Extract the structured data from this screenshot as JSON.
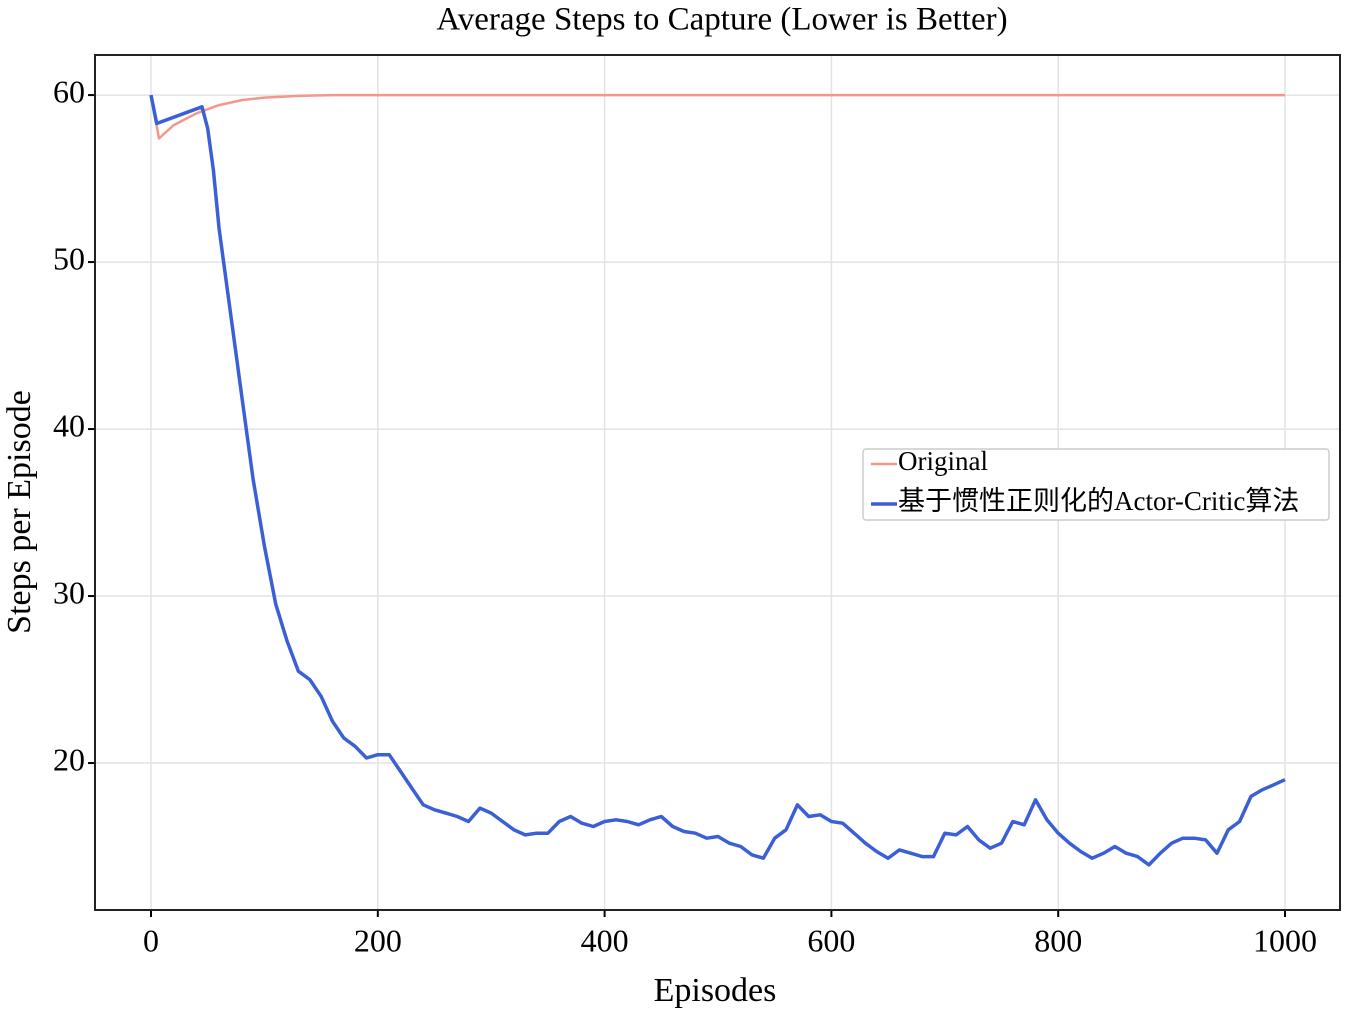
{
  "chart_data": {
    "type": "line",
    "title": "Average Steps to Capture (Lower is Better)",
    "xlabel": "Episodes",
    "ylabel": "Steps per Episode",
    "xlim": [
      -49.4,
      1048.5
    ],
    "ylim": [
      11.2,
      62.4
    ],
    "xticks": [
      0,
      200,
      400,
      600,
      800,
      1000
    ],
    "yticks": [
      20,
      30,
      40,
      50,
      60
    ],
    "grid": true,
    "legend": "center right",
    "series": [
      {
        "name": "Original",
        "color": "#f4978a",
        "x": [
          0,
          7,
          20,
          40,
          60,
          80,
          100,
          130,
          160,
          200,
          400,
          600,
          800,
          1000
        ],
        "values": [
          60,
          57.4,
          58.2,
          58.9,
          59.4,
          59.7,
          59.85,
          59.95,
          60,
          60,
          60,
          60,
          60,
          60
        ]
      },
      {
        "name": "基于惯性正则化的Actor-Critic算法",
        "color": "#3a5fd6",
        "x": [
          0,
          5,
          45,
          50,
          55,
          60,
          70,
          80,
          90,
          100,
          110,
          120,
          130,
          140,
          150,
          160,
          170,
          180,
          190,
          200,
          210,
          220,
          230,
          240,
          250,
          260,
          270,
          280,
          290,
          300,
          310,
          320,
          330,
          340,
          350,
          360,
          370,
          380,
          390,
          400,
          410,
          420,
          430,
          440,
          450,
          460,
          470,
          480,
          490,
          500,
          510,
          520,
          530,
          540,
          550,
          560,
          570,
          580,
          590,
          600,
          610,
          620,
          630,
          640,
          650,
          660,
          670,
          680,
          690,
          700,
          710,
          720,
          730,
          740,
          750,
          760,
          770,
          780,
          790,
          800,
          810,
          820,
          830,
          840,
          850,
          860,
          870,
          880,
          890,
          900,
          910,
          920,
          930,
          940,
          950,
          960,
          970,
          980,
          990,
          1000
        ],
        "values": [
          60,
          58.3,
          59.3,
          58,
          55.5,
          52,
          47,
          42,
          37,
          33,
          29.5,
          27.3,
          25.5,
          25,
          24,
          22.5,
          21.5,
          21,
          20.3,
          20.5,
          20.5,
          19.5,
          18.5,
          17.5,
          17.2,
          17,
          16.8,
          16.5,
          17.3,
          17,
          16.5,
          16,
          15.7,
          15.8,
          15.8,
          16.5,
          16.8,
          16.4,
          16.2,
          16.5,
          16.6,
          16.5,
          16.3,
          16.6,
          16.8,
          16.2,
          15.9,
          15.8,
          15.5,
          15.6,
          15.2,
          15,
          14.5,
          14.3,
          15.5,
          16,
          17.5,
          16.8,
          16.9,
          16.5,
          16.4,
          15.8,
          15.2,
          14.7,
          14.3,
          14.8,
          14.6,
          14.4,
          14.4,
          15.8,
          15.7,
          16.2,
          15.4,
          14.9,
          15.2,
          16.5,
          16.3,
          17.8,
          16.6,
          15.8,
          15.2,
          14.7,
          14.3,
          14.6,
          15,
          14.6,
          14.4,
          13.9,
          14.6,
          15.2,
          15.5,
          15.5,
          15.4,
          14.6,
          16,
          16.5,
          18,
          18.4,
          18.7,
          19
        ]
      }
    ]
  }
}
